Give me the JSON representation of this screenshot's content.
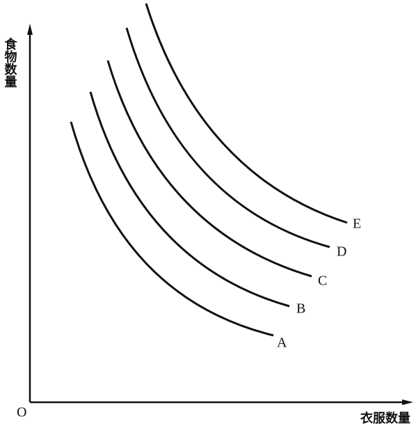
{
  "axes": {
    "y_label": "食物数量",
    "x_label": "衣服数量",
    "origin": "O"
  },
  "curves": [
    {
      "label": "A"
    },
    {
      "label": "B"
    },
    {
      "label": "C"
    },
    {
      "label": "D"
    },
    {
      "label": "E"
    }
  ]
}
